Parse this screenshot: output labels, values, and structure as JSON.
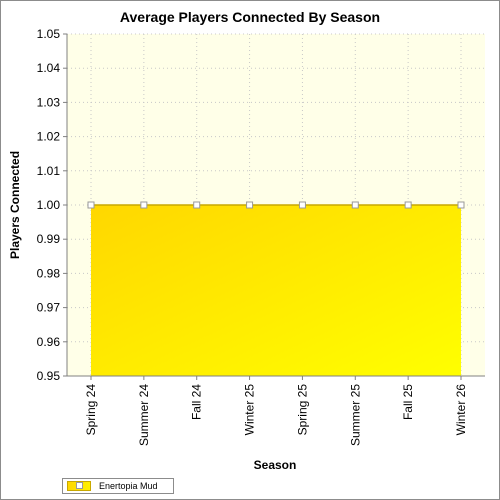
{
  "chart_data": {
    "type": "area",
    "title": "Average Players Connected By Season",
    "xlabel": "Season",
    "ylabel": "Players Connected",
    "categories": [
      "Spring 24",
      "Summer 24",
      "Fall 24",
      "Winter 25",
      "Spring 25",
      "Summer 25",
      "Fall 25",
      "Winter 26"
    ],
    "series": [
      {
        "name": "Enertopia Mud",
        "values": [
          1.0,
          1.0,
          1.0,
          1.0,
          1.0,
          1.0,
          1.0,
          1.0
        ]
      }
    ],
    "ylim": [
      0.95,
      1.05
    ],
    "yticks": [
      0.95,
      0.96,
      0.97,
      0.98,
      0.99,
      1.0,
      1.01,
      1.02,
      1.03,
      1.04,
      1.05
    ],
    "ytick_labels": [
      "0.95",
      "0.96",
      "0.97",
      "0.98",
      "0.99",
      "1.00",
      "1.01",
      "1.02",
      "1.03",
      "1.04",
      "1.05"
    ],
    "grid": true,
    "legend_position": "bottom-left",
    "colors": {
      "fill_start": "#ffd700",
      "fill_end": "#ffff00",
      "line": "#c8a800",
      "plot_background": "#ffffe8",
      "grid": "#c8c8c8"
    }
  }
}
